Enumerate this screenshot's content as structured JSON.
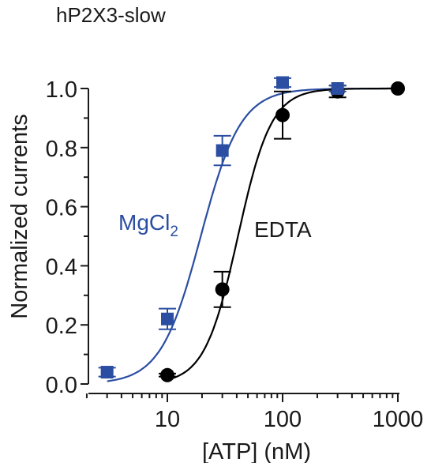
{
  "chart_data": {
    "type": "scatter",
    "title": "hP2X3-slow",
    "xlabel": "[ATP] (nM)",
    "ylabel": "Normalized currents",
    "xscale": "log",
    "xlim": [
      2,
      1000
    ],
    "ylim": [
      0,
      1.0
    ],
    "xticks": [
      {
        "value": 10,
        "label": "10"
      },
      {
        "value": 100,
        "label": "100"
      },
      {
        "value": 1000,
        "label": "1000"
      }
    ],
    "yticks": [
      {
        "value": 0,
        "label": "0.0"
      },
      {
        "value": 0.2,
        "label": "0.2"
      },
      {
        "value": 0.4,
        "label": "0.4"
      },
      {
        "value": 0.6,
        "label": "0.6"
      },
      {
        "value": 0.8,
        "label": "0.8"
      },
      {
        "value": 1.0,
        "label": "1.0"
      }
    ],
    "series": [
      {
        "name": "MgCl",
        "name_subscript": "2",
        "color": "#2b4ea2",
        "marker": "square",
        "points": [
          {
            "x": 3,
            "y": 0.04,
            "err": 0.015
          },
          {
            "x": 10,
            "y": 0.22,
            "err": 0.035
          },
          {
            "x": 30,
            "y": 0.79,
            "err": 0.05
          },
          {
            "x": 100,
            "y": 1.02,
            "err": 0.015
          },
          {
            "x": 300,
            "y": 1.0,
            "err": 0.01
          }
        ],
        "fit": {
          "ec50": 19.5,
          "hill": 2.5
        }
      },
      {
        "name": "EDTA",
        "color": "#000000",
        "marker": "circle",
        "points": [
          {
            "x": 10,
            "y": 0.03,
            "err": 0.005
          },
          {
            "x": 30,
            "y": 0.32,
            "err": 0.06
          },
          {
            "x": 100,
            "y": 0.91,
            "err": 0.08
          },
          {
            "x": 300,
            "y": 0.99,
            "err": 0.02
          },
          {
            "x": 1000,
            "y": 1.0,
            "err": 0.0
          }
        ],
        "fit": {
          "ec50": 41,
          "hill": 3.0
        }
      }
    ]
  }
}
